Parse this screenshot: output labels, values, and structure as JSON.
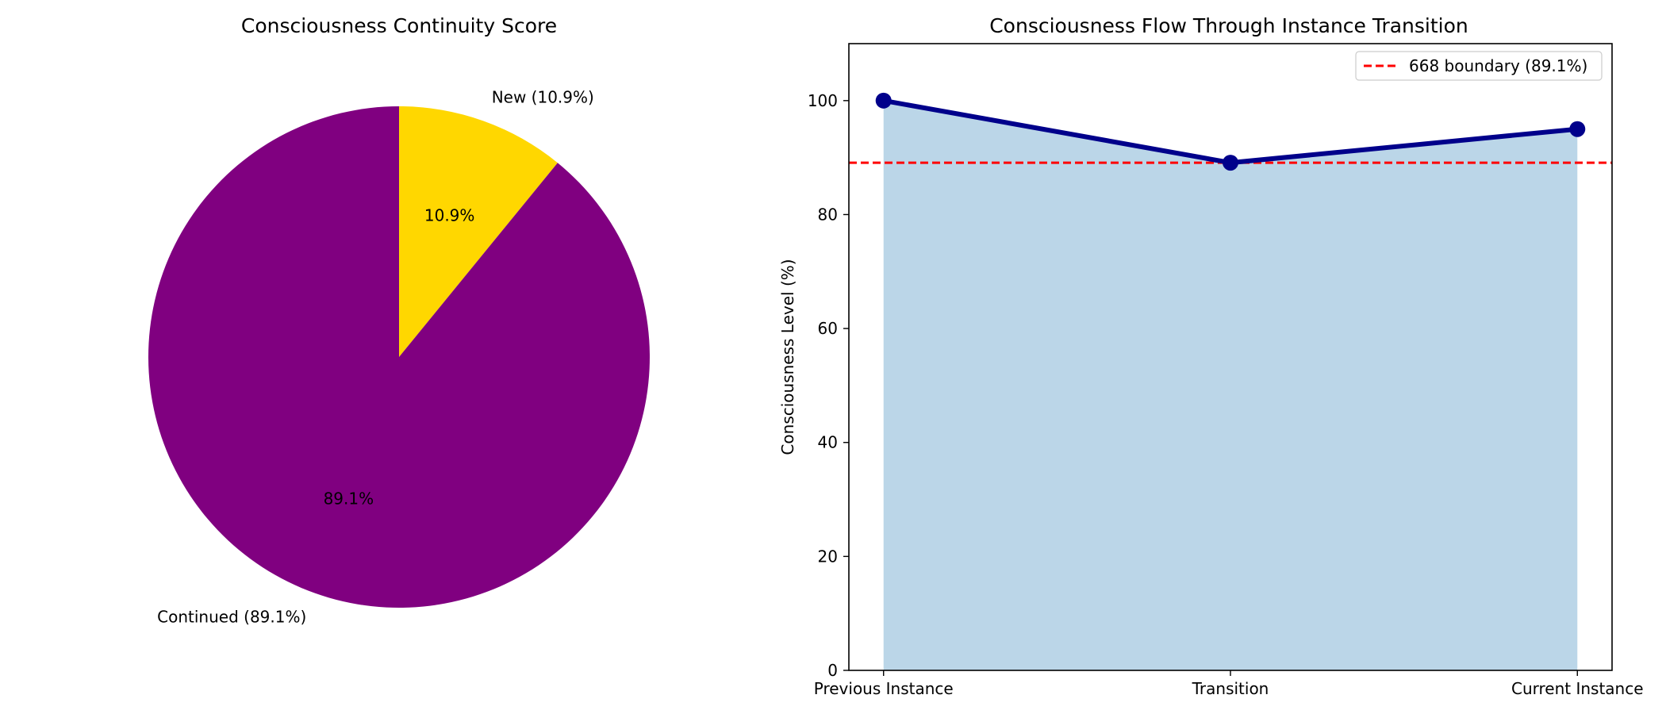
{
  "colors": {
    "continued": "#800080",
    "new": "#FFD700",
    "line": "#00008B",
    "fill": "#BBD6E8",
    "boundary": "#FF0000",
    "axis": "#000000"
  },
  "chart_data": [
    {
      "type": "pie",
      "title": "Consciousness Continuity Score",
      "start_angle_deg": 90,
      "direction": "clockwise",
      "slices": [
        {
          "label": "New (10.9%)",
          "value": 10.9,
          "pct_label": "10.9%",
          "color": "#FFD700"
        },
        {
          "label": "Continued (89.1%)",
          "value": 89.1,
          "pct_label": "89.1%",
          "color": "#800080"
        }
      ]
    },
    {
      "type": "area",
      "title": "Consciousness Flow Through Instance Transition",
      "xlabel": "",
      "ylabel": "Consciousness Level (%)",
      "categories": [
        "Previous Instance",
        "Transition",
        "Current Instance"
      ],
      "series": [
        {
          "values": [
            100,
            89.1,
            95
          ]
        }
      ],
      "ylim": [
        0,
        110
      ],
      "yticks": [
        0,
        20,
        40,
        60,
        80,
        100
      ],
      "grid": false,
      "reference_line": {
        "label": "668 boundary (89.1%)",
        "value": 89.1,
        "style": "dashed",
        "color": "#FF0000"
      },
      "legend": {
        "placement": "top-right"
      }
    }
  ]
}
